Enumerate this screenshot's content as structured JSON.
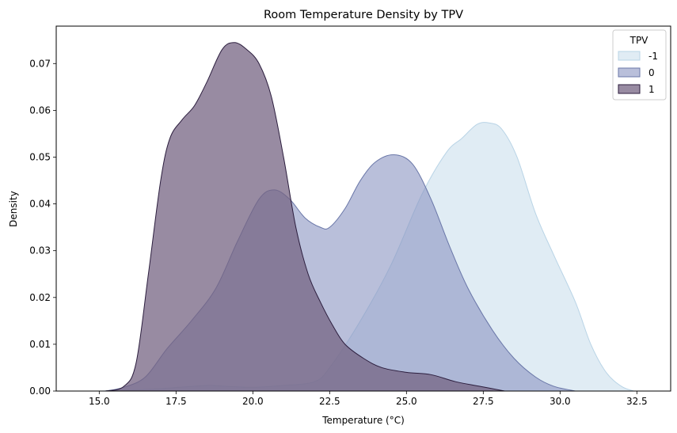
{
  "chart_data": {
    "type": "area",
    "title": "Room Temperature Density by TPV",
    "xlabel": "Temperature (°C)",
    "ylabel": "Density",
    "xlim": [
      13.6,
      33.6
    ],
    "ylim": [
      0,
      0.078
    ],
    "x_ticks": [
      "15.0",
      "17.5",
      "20.0",
      "22.5",
      "25.0",
      "27.5",
      "30.0",
      "32.5"
    ],
    "y_ticks": [
      "0.00",
      "0.01",
      "0.02",
      "0.03",
      "0.04",
      "0.05",
      "0.06",
      "0.07"
    ],
    "grid": false,
    "legend": {
      "title": "TPV",
      "placement": "top-right"
    },
    "series": [
      {
        "name": "-1",
        "fill": "#d6e6f0",
        "stroke": "#b9d4e6",
        "opacity": 0.75,
        "x": [
          15.0,
          16.0,
          17.0,
          18.0,
          18.6,
          19.2,
          20.0,
          21.0,
          22.0,
          22.5,
          23.5,
          24.5,
          25.5,
          26.3,
          26.8,
          27.3,
          27.7,
          28.1,
          28.6,
          29.2,
          29.8,
          30.5,
          31.0,
          31.5,
          32.0,
          32.4
        ],
        "y": [
          0.0,
          0.0002,
          0.0005,
          0.001,
          0.0012,
          0.001,
          0.0008,
          0.0012,
          0.002,
          0.005,
          0.015,
          0.027,
          0.042,
          0.051,
          0.054,
          0.057,
          0.0573,
          0.056,
          0.05,
          0.038,
          0.029,
          0.019,
          0.01,
          0.004,
          0.001,
          0.0
        ]
      },
      {
        "name": "0",
        "fill": "#8a94c2",
        "stroke": "#6a77a8",
        "opacity": 0.6,
        "x": [
          15.2,
          15.8,
          16.5,
          17.2,
          18.0,
          18.8,
          19.5,
          20.2,
          20.7,
          21.2,
          21.7,
          22.2,
          22.5,
          23.0,
          23.5,
          24.0,
          24.6,
          25.2,
          25.8,
          26.4,
          27.0,
          27.8,
          28.5,
          29.2,
          29.8,
          30.5
        ],
        "y": [
          0.0,
          0.0008,
          0.003,
          0.009,
          0.015,
          0.022,
          0.032,
          0.041,
          0.043,
          0.041,
          0.037,
          0.035,
          0.035,
          0.039,
          0.045,
          0.049,
          0.0505,
          0.0485,
          0.041,
          0.031,
          0.022,
          0.013,
          0.007,
          0.003,
          0.001,
          0.0
        ]
      },
      {
        "name": "1",
        "fill": "#766483",
        "stroke": "#2c1e3e",
        "opacity": 0.75,
        "x": [
          15.2,
          15.8,
          16.2,
          16.6,
          17.0,
          17.3,
          17.7,
          18.1,
          18.5,
          19.0,
          19.4,
          19.8,
          20.2,
          20.6,
          21.0,
          21.4,
          21.8,
          22.2,
          22.6,
          23.0,
          23.6,
          24.2,
          25.0,
          25.8,
          26.6,
          27.4,
          28.2
        ],
        "y": [
          0.0,
          0.001,
          0.006,
          0.025,
          0.045,
          0.054,
          0.058,
          0.061,
          0.066,
          0.073,
          0.0745,
          0.073,
          0.07,
          0.063,
          0.05,
          0.035,
          0.025,
          0.019,
          0.014,
          0.01,
          0.007,
          0.005,
          0.004,
          0.0035,
          0.002,
          0.001,
          0.0
        ]
      }
    ]
  }
}
